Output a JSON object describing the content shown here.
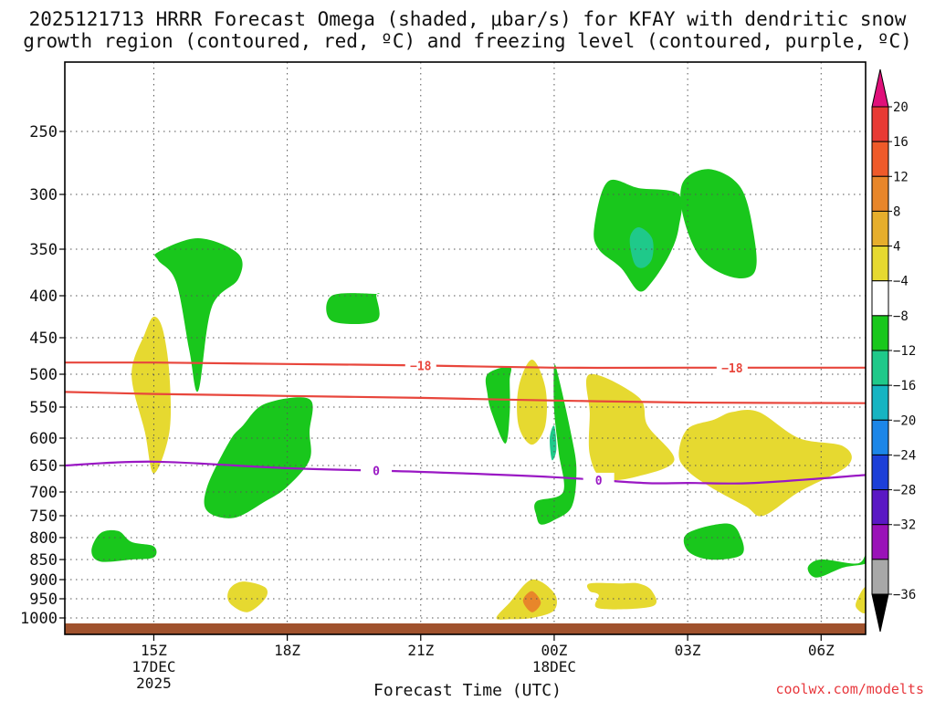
{
  "chart_data": {
    "type": "heatmap",
    "title_line1": "2025121713 HRRR Forecast Omega (shaded, μbar/s) for KFAY with dendritic snow",
    "title_line2": "growth region (contoured, red, ºC) and freezing level (contoured, purple, ºC)",
    "xlabel": "Forecast Time (UTC)",
    "credit": "coolwx.com/modelts",
    "x_range_hours": [
      13.0,
      31.0
    ],
    "x_ticks": [
      {
        "hour": 15,
        "label": "15Z",
        "sub1": "17DEC",
        "sub2": "2025"
      },
      {
        "hour": 18,
        "label": "18Z",
        "sub1": "",
        "sub2": ""
      },
      {
        "hour": 21,
        "label": "21Z",
        "sub1": "",
        "sub2": ""
      },
      {
        "hour": 24,
        "label": "00Z",
        "sub1": "18DEC",
        "sub2": ""
      },
      {
        "hour": 27,
        "label": "03Z",
        "sub1": "",
        "sub2": ""
      },
      {
        "hour": 30,
        "label": "06Z",
        "sub1": "",
        "sub2": ""
      }
    ],
    "y_ticks": [
      {
        "p": 250,
        "label": "250"
      },
      {
        "p": 300,
        "label": "300"
      },
      {
        "p": 350,
        "label": "350"
      },
      {
        "p": 400,
        "label": "400"
      },
      {
        "p": 450,
        "label": "450"
      },
      {
        "p": 500,
        "label": "500"
      },
      {
        "p": 550,
        "label": "550"
      },
      {
        "p": 600,
        "label": "600"
      },
      {
        "p": 650,
        "label": "650"
      },
      {
        "p": 700,
        "label": "700"
      },
      {
        "p": 750,
        "label": "750"
      },
      {
        "p": 800,
        "label": "800"
      },
      {
        "p": 850,
        "label": "850"
      },
      {
        "p": 900,
        "label": "900"
      },
      {
        "p": 950,
        "label": "950"
      },
      {
        "p": 1000,
        "label": "1000"
      }
    ],
    "colorbar": {
      "labels": [
        "20",
        "16",
        "12",
        "8",
        "4",
        "−4",
        "−8",
        "−12",
        "−16",
        "−20",
        "−24",
        "−28",
        "−32",
        "−36"
      ],
      "segments": [
        {
          "color": "#e83a34"
        },
        {
          "color": "#ef5a2a"
        },
        {
          "color": "#e8862a"
        },
        {
          "color": "#e6ae2c"
        },
        {
          "color": "#e6d930"
        },
        {
          "color": "#ffffff"
        },
        {
          "color": "#19c71c"
        },
        {
          "color": "#1fc98a"
        },
        {
          "color": "#16b4c2"
        },
        {
          "color": "#1c86e8"
        },
        {
          "color": "#1c3fd8"
        },
        {
          "color": "#5a18c4"
        },
        {
          "color": "#9a12b8"
        },
        {
          "color": "#a8a8a8"
        }
      ],
      "top_color": "#e0107a",
      "bottom_color": "#000000"
    },
    "contours": [
      {
        "name": "dendritic-top",
        "color": "#e8463c",
        "label": "−18",
        "points": [
          [
            13.0,
            484
          ],
          [
            15,
            484
          ],
          [
            18,
            486
          ],
          [
            21,
            488
          ],
          [
            24,
            491
          ],
          [
            27,
            491
          ],
          [
            31,
            491
          ]
        ],
        "label_hours": [
          21.0,
          28.0
        ]
      },
      {
        "name": "dendritic-bottom",
        "color": "#e8463c",
        "label": "",
        "points": [
          [
            13.0,
            527
          ],
          [
            15,
            530
          ],
          [
            18,
            533
          ],
          [
            21,
            536
          ],
          [
            24,
            540
          ],
          [
            27,
            543
          ],
          [
            31,
            544
          ]
        ],
        "label_hours": []
      },
      {
        "name": "freezing-level",
        "color": "#9a18c4",
        "label": "0",
        "points": [
          [
            13.0,
            650
          ],
          [
            15,
            643
          ],
          [
            18,
            655
          ],
          [
            21,
            662
          ],
          [
            24,
            672
          ],
          [
            26,
            683
          ],
          [
            27,
            683
          ],
          [
            28.5,
            683
          ],
          [
            31,
            668
          ]
        ],
        "label_hours": [
          20.0,
          25.0
        ]
      }
    ],
    "regions": [
      {
        "color": "#19c71c",
        "points": [
          [
            15.1,
            353
          ],
          [
            16.0,
            340
          ],
          [
            16.9,
            355
          ],
          [
            16.9,
            382
          ],
          [
            16.3,
            414
          ],
          [
            16.0,
            525
          ],
          [
            15.8,
            468
          ],
          [
            15.5,
            385
          ],
          [
            15.1,
            362
          ]
        ]
      },
      {
        "color": "#19c71c",
        "points": [
          [
            19.0,
            400
          ],
          [
            20.0,
            398
          ],
          [
            20.0,
            400
          ],
          [
            20.0,
            430
          ],
          [
            19.0,
            430
          ]
        ]
      },
      {
        "color": "#19c71c",
        "points": [
          [
            16.7,
            606
          ],
          [
            17.0,
            580
          ],
          [
            17.5,
            545
          ],
          [
            18.5,
            538
          ],
          [
            18.5,
            590
          ],
          [
            18.5,
            640
          ],
          [
            18.0,
            690
          ],
          [
            17.5,
            720
          ],
          [
            16.8,
            755
          ],
          [
            16.2,
            740
          ],
          [
            16.2,
            690
          ]
        ]
      },
      {
        "color": "#19c71c",
        "points": [
          [
            13.8,
            790
          ],
          [
            14.2,
            785
          ],
          [
            14.5,
            810
          ],
          [
            15.0,
            820
          ],
          [
            15.0,
            845
          ],
          [
            14.5,
            850
          ],
          [
            13.8,
            855
          ],
          [
            13.6,
            830
          ]
        ]
      },
      {
        "color": "#19c71c",
        "points": [
          [
            22.5,
            500
          ],
          [
            23.0,
            490
          ],
          [
            23.0,
            510
          ],
          [
            23.0,
            560
          ],
          [
            22.9,
            610
          ],
          [
            22.6,
            560
          ],
          [
            22.5,
            530
          ]
        ]
      },
      {
        "color": "#19c71c",
        "points": [
          [
            23.6,
            720
          ],
          [
            24.2,
            700
          ],
          [
            24.1,
            625
          ],
          [
            24.0,
            555
          ],
          [
            24.0,
            490
          ],
          [
            24.1,
            505
          ],
          [
            24.4,
            600
          ],
          [
            24.5,
            660
          ],
          [
            24.4,
            730
          ],
          [
            24.0,
            760
          ],
          [
            23.7,
            770
          ],
          [
            23.6,
            750
          ]
        ]
      },
      {
        "color": "#1fc98a",
        "points": [
          [
            23.9,
            600
          ],
          [
            24.0,
            580
          ],
          [
            24.05,
            620
          ],
          [
            23.95,
            640
          ]
        ]
      },
      {
        "color": "#19c71c",
        "points": [
          [
            24.9,
            330
          ],
          [
            25.2,
            290
          ],
          [
            25.9,
            295
          ],
          [
            26.8,
            300
          ],
          [
            26.8,
            330
          ],
          [
            26.6,
            355
          ],
          [
            26.2,
            385
          ],
          [
            25.9,
            395
          ],
          [
            25.5,
            370
          ],
          [
            25.0,
            350
          ]
        ]
      },
      {
        "color": "#1fc98a",
        "points": [
          [
            25.7,
            340
          ],
          [
            25.9,
            330
          ],
          [
            26.2,
            340
          ],
          [
            26.2,
            360
          ],
          [
            26.0,
            370
          ],
          [
            25.8,
            365
          ]
        ]
      },
      {
        "color": "#19c71c",
        "points": [
          [
            26.9,
            290
          ],
          [
            27.5,
            280
          ],
          [
            28.2,
            295
          ],
          [
            28.5,
            340
          ],
          [
            28.5,
            375
          ],
          [
            28.0,
            380
          ],
          [
            27.3,
            360
          ],
          [
            26.9,
            320
          ]
        ]
      },
      {
        "color": "#19c71c",
        "points": [
          [
            27.0,
            790
          ],
          [
            27.9,
            768
          ],
          [
            28.2,
            800
          ],
          [
            28.2,
            840
          ],
          [
            27.5,
            850
          ],
          [
            27.0,
            830
          ]
        ]
      },
      {
        "color": "#19c71c",
        "points": [
          [
            30.8,
            860
          ],
          [
            31.0,
            840
          ],
          [
            31.0,
            860
          ],
          [
            30.5,
            870
          ],
          [
            29.9,
            895
          ],
          [
            29.7,
            870
          ],
          [
            30.0,
            850
          ]
        ]
      },
      {
        "color": "#e6d930",
        "points": [
          [
            15.0,
            425
          ],
          [
            15.2,
            440
          ],
          [
            15.35,
            500
          ],
          [
            15.35,
            590
          ],
          [
            15.0,
            665
          ],
          [
            14.8,
            590
          ],
          [
            14.5,
            500
          ],
          [
            14.8,
            445
          ]
        ]
      },
      {
        "color": "#e6d930",
        "points": [
          [
            23.5,
            480
          ],
          [
            23.8,
            520
          ],
          [
            23.8,
            580
          ],
          [
            23.5,
            612
          ],
          [
            23.2,
            580
          ],
          [
            23.2,
            520
          ]
        ]
      },
      {
        "color": "#e6d930",
        "points": [
          [
            24.8,
            500
          ],
          [
            25.9,
            535
          ],
          [
            26.1,
            580
          ],
          [
            26.7,
            640
          ],
          [
            25.9,
            670
          ],
          [
            25.1,
            675
          ],
          [
            24.8,
            630
          ],
          [
            24.8,
            560
          ]
        ]
      },
      {
        "color": "#e6d930",
        "points": [
          [
            27.0,
            585
          ],
          [
            27.6,
            570
          ],
          [
            28.0,
            558
          ],
          [
            28.6,
            558
          ],
          [
            29.5,
            600
          ],
          [
            30.5,
            615
          ],
          [
            30.6,
            650
          ],
          [
            29.5,
            700
          ],
          [
            28.7,
            750
          ],
          [
            28.3,
            730
          ],
          [
            27.5,
            690
          ],
          [
            27.0,
            660
          ],
          [
            26.8,
            630
          ]
        ]
      },
      {
        "color": "#e6d930",
        "points": [
          [
            16.7,
            925
          ],
          [
            17.0,
            905
          ],
          [
            17.5,
            920
          ],
          [
            17.5,
            950
          ],
          [
            17.1,
            985
          ],
          [
            16.7,
            960
          ]
        ]
      },
      {
        "color": "#e6d930",
        "points": [
          [
            22.7,
            1000
          ],
          [
            23.0,
            960
          ],
          [
            23.5,
            900
          ],
          [
            24.0,
            935
          ],
          [
            24.0,
            980
          ],
          [
            23.5,
            1000
          ],
          [
            23.0,
            1002
          ]
        ]
      },
      {
        "color": "#e8862a",
        "points": [
          [
            23.3,
            955
          ],
          [
            23.5,
            930
          ],
          [
            23.7,
            960
          ],
          [
            23.5,
            985
          ]
        ]
      },
      {
        "color": "#e6d930",
        "points": [
          [
            24.8,
            910
          ],
          [
            25.5,
            910
          ],
          [
            25.9,
            910
          ],
          [
            26.2,
            930
          ],
          [
            26.2,
            970
          ],
          [
            25.0,
            975
          ],
          [
            25.0,
            940
          ],
          [
            24.8,
            930
          ]
        ]
      },
      {
        "color": "#e6d930",
        "points": [
          [
            30.8,
            955
          ],
          [
            31.0,
            920
          ],
          [
            31.0,
            985
          ],
          [
            30.8,
            975
          ]
        ]
      }
    ]
  }
}
